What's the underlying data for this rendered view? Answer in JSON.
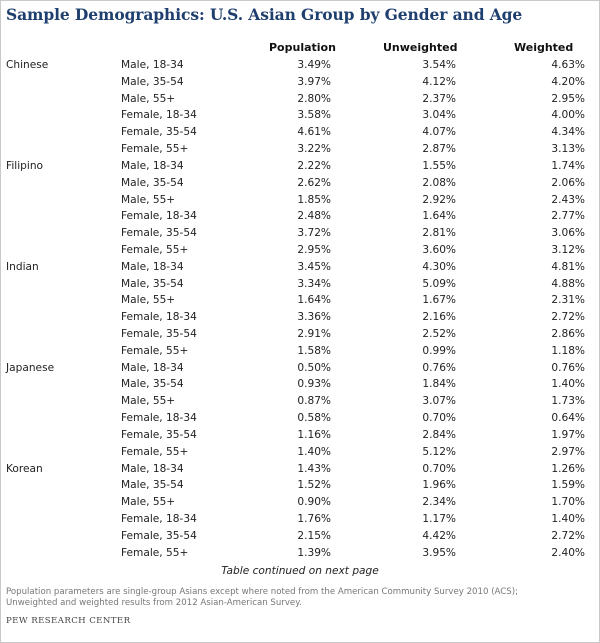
{
  "title": "Sample Demographics: U.S. Asian Group by Gender and Age",
  "columns": {
    "population": "Population",
    "unweighted": "Unweighted",
    "weighted": "Weighted"
  },
  "groups": [
    {
      "name": "Chinese",
      "rows": [
        {
          "segment": "Male, 18-34",
          "population": "3.49%",
          "unweighted": "3.54%",
          "weighted": "4.63%"
        },
        {
          "segment": "Male, 35-54",
          "population": "3.97%",
          "unweighted": "4.12%",
          "weighted": "4.20%"
        },
        {
          "segment": "Male, 55+",
          "population": "2.80%",
          "unweighted": "2.37%",
          "weighted": "2.95%"
        },
        {
          "segment": "Female, 18-34",
          "population": "3.58%",
          "unweighted": "3.04%",
          "weighted": "4.00%"
        },
        {
          "segment": "Female, 35-54",
          "population": "4.61%",
          "unweighted": "4.07%",
          "weighted": "4.34%"
        },
        {
          "segment": "Female, 55+",
          "population": "3.22%",
          "unweighted": "2.87%",
          "weighted": "3.13%"
        }
      ]
    },
    {
      "name": "Filipino",
      "rows": [
        {
          "segment": "Male, 18-34",
          "population": "2.22%",
          "unweighted": "1.55%",
          "weighted": "1.74%"
        },
        {
          "segment": "Male, 35-54",
          "population": "2.62%",
          "unweighted": "2.08%",
          "weighted": "2.06%"
        },
        {
          "segment": "Male, 55+",
          "population": "1.85%",
          "unweighted": "2.92%",
          "weighted": "2.43%"
        },
        {
          "segment": "Female, 18-34",
          "population": "2.48%",
          "unweighted": "1.64%",
          "weighted": "2.77%"
        },
        {
          "segment": "Female, 35-54",
          "population": "3.72%",
          "unweighted": "2.81%",
          "weighted": "3.06%"
        },
        {
          "segment": "Female, 55+",
          "population": "2.95%",
          "unweighted": "3.60%",
          "weighted": "3.12%"
        }
      ]
    },
    {
      "name": "Indian",
      "rows": [
        {
          "segment": "Male, 18-34",
          "population": "3.45%",
          "unweighted": "4.30%",
          "weighted": "4.81%"
        },
        {
          "segment": "Male, 35-54",
          "population": "3.34%",
          "unweighted": "5.09%",
          "weighted": "4.88%"
        },
        {
          "segment": "Male, 55+",
          "population": "1.64%",
          "unweighted": "1.67%",
          "weighted": "2.31%"
        },
        {
          "segment": "Female, 18-34",
          "population": "3.36%",
          "unweighted": "2.16%",
          "weighted": "2.72%"
        },
        {
          "segment": "Female, 35-54",
          "population": "2.91%",
          "unweighted": "2.52%",
          "weighted": "2.86%"
        },
        {
          "segment": "Female, 55+",
          "population": "1.58%",
          "unweighted": "0.99%",
          "weighted": "1.18%"
        }
      ]
    },
    {
      "name": "Japanese",
      "rows": [
        {
          "segment": "Male, 18-34",
          "population": "0.50%",
          "unweighted": "0.76%",
          "weighted": "0.76%"
        },
        {
          "segment": "Male, 35-54",
          "population": "0.93%",
          "unweighted": "1.84%",
          "weighted": "1.40%"
        },
        {
          "segment": "Male, 55+",
          "population": "0.87%",
          "unweighted": "3.07%",
          "weighted": "1.73%"
        },
        {
          "segment": "Female, 18-34",
          "population": "0.58%",
          "unweighted": "0.70%",
          "weighted": "0.64%"
        },
        {
          "segment": "Female, 35-54",
          "population": "1.16%",
          "unweighted": "2.84%",
          "weighted": "1.97%"
        },
        {
          "segment": "Female, 55+",
          "population": "1.40%",
          "unweighted": "5.12%",
          "weighted": "2.97%"
        }
      ]
    },
    {
      "name": "Korean",
      "rows": [
        {
          "segment": "Male, 18-34",
          "population": "1.43%",
          "unweighted": "0.70%",
          "weighted": "1.26%"
        },
        {
          "segment": "Male, 35-54",
          "population": "1.52%",
          "unweighted": "1.96%",
          "weighted": "1.59%"
        },
        {
          "segment": "Male, 55+",
          "population": "0.90%",
          "unweighted": "2.34%",
          "weighted": "1.70%"
        },
        {
          "segment": "Female, 18-34",
          "population": "1.76%",
          "unweighted": "1.17%",
          "weighted": "1.40%"
        },
        {
          "segment": "Female, 35-54",
          "population": "2.15%",
          "unweighted": "4.42%",
          "weighted": "2.72%"
        },
        {
          "segment": "Female, 55+",
          "population": "1.39%",
          "unweighted": "3.95%",
          "weighted": "2.40%"
        }
      ]
    }
  ],
  "continued_note": "Table continued on next page",
  "footnote_lines": [
    "Population parameters are single-group Asians except where noted from the American Community Survey 2010 (ACS);",
    "Unweighted and weighted results from 2012 Asian-American Survey."
  ],
  "source": "PEW RESEARCH CENTER",
  "colors": {
    "title": "#1f3f6e",
    "footnote": "#777777",
    "border": "#c9c9c9"
  }
}
